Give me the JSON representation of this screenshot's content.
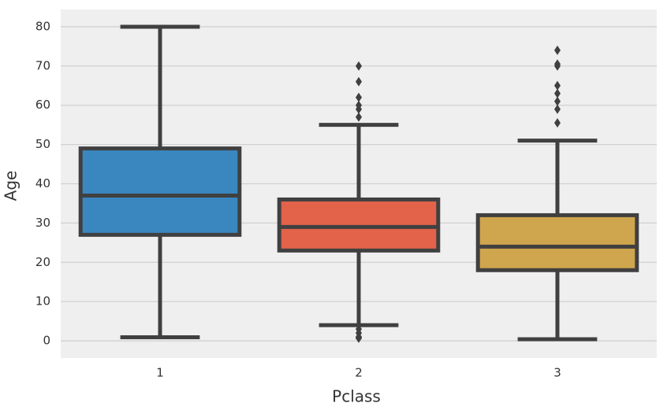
{
  "chart_data": {
    "type": "box",
    "x_label": "Pclass",
    "y_label": "Age",
    "categories": [
      "1",
      "2",
      "3"
    ],
    "boxes": [
      {
        "color": "#3a87c0",
        "min": 0.92,
        "q1": 27,
        "median": 37,
        "q3": 49,
        "max": 80,
        "outliers": []
      },
      {
        "color": "#e2624a",
        "min": 4,
        "q1": 23,
        "median": 29,
        "q3": 36,
        "max": 55,
        "outliers": [
          57,
          59,
          60,
          62,
          66,
          70,
          0.67,
          0.83,
          1,
          2,
          3
        ]
      },
      {
        "color": "#cfa54d",
        "min": 0.42,
        "q1": 18,
        "median": 24,
        "q3": 32,
        "max": 51,
        "outliers": [
          55.5,
          59,
          61,
          63,
          65,
          70,
          70.5,
          74
        ]
      }
    ],
    "ylim": [
      -4.4,
      84.4
    ],
    "yticks": [
      0,
      10,
      20,
      30,
      40,
      50,
      60,
      70,
      80
    ],
    "grid": true
  }
}
